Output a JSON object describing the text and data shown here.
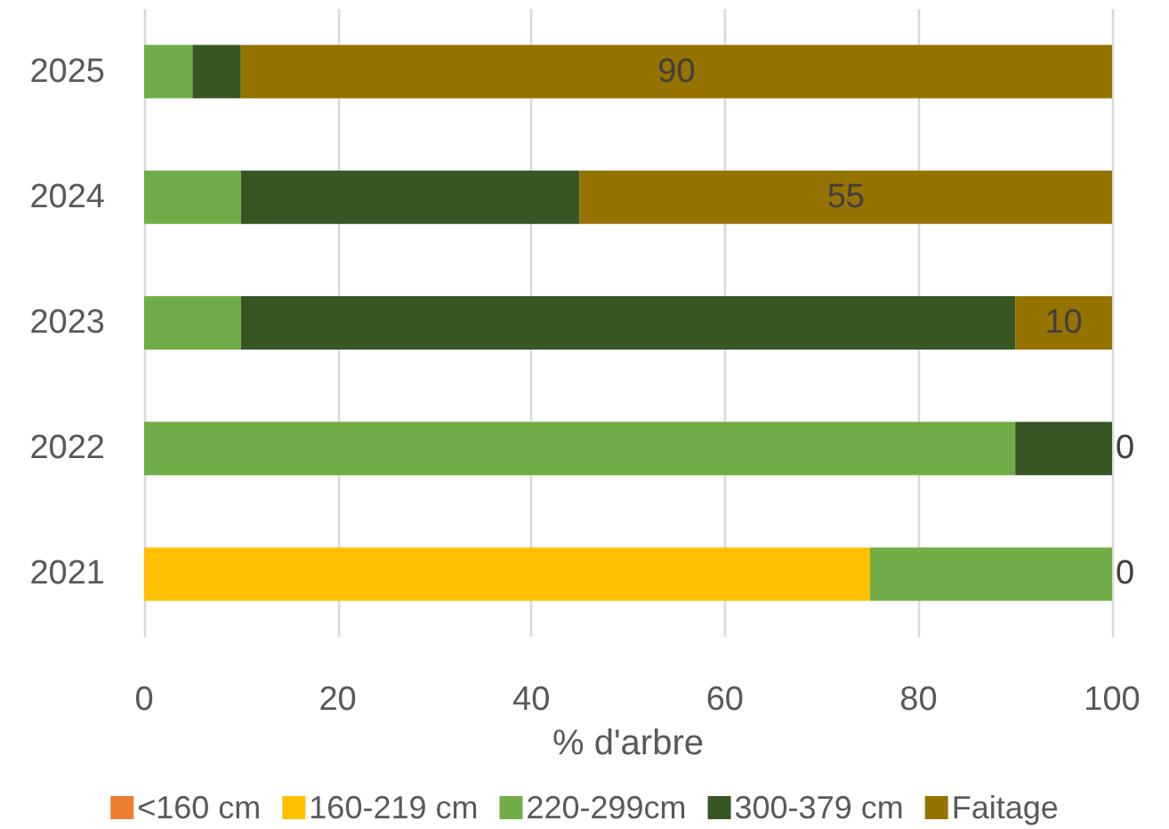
{
  "chart_data": {
    "type": "bar",
    "orientation": "horizontal",
    "stacked": true,
    "xlabel": "% d'arbre",
    "categories": [
      "2025",
      "2024",
      "2023",
      "2022",
      "2021"
    ],
    "series": [
      {
        "name": "<160 cm",
        "color": "#ed7d31",
        "values": [
          0,
          0,
          0,
          0,
          0
        ]
      },
      {
        "name": "160-219 cm",
        "color": "#ffc000",
        "values": [
          0,
          0,
          0,
          0,
          75
        ]
      },
      {
        "name": "220-299cm",
        "color": "#70ad47",
        "values": [
          5,
          10,
          10,
          90,
          25
        ]
      },
      {
        "name": "300-379 cm",
        "color": "#375623",
        "values": [
          5,
          35,
          80,
          10,
          0
        ]
      },
      {
        "name": "Faitage",
        "color": "#967300",
        "values": [
          90,
          55,
          10,
          0,
          0
        ],
        "value_labels": [
          "90",
          "55",
          "10",
          "0",
          "0"
        ]
      }
    ],
    "xlim": [
      0,
      100
    ],
    "xticks": [
      0,
      20,
      40,
      60,
      80,
      100
    ],
    "grid": "x",
    "legend": "bottom"
  }
}
